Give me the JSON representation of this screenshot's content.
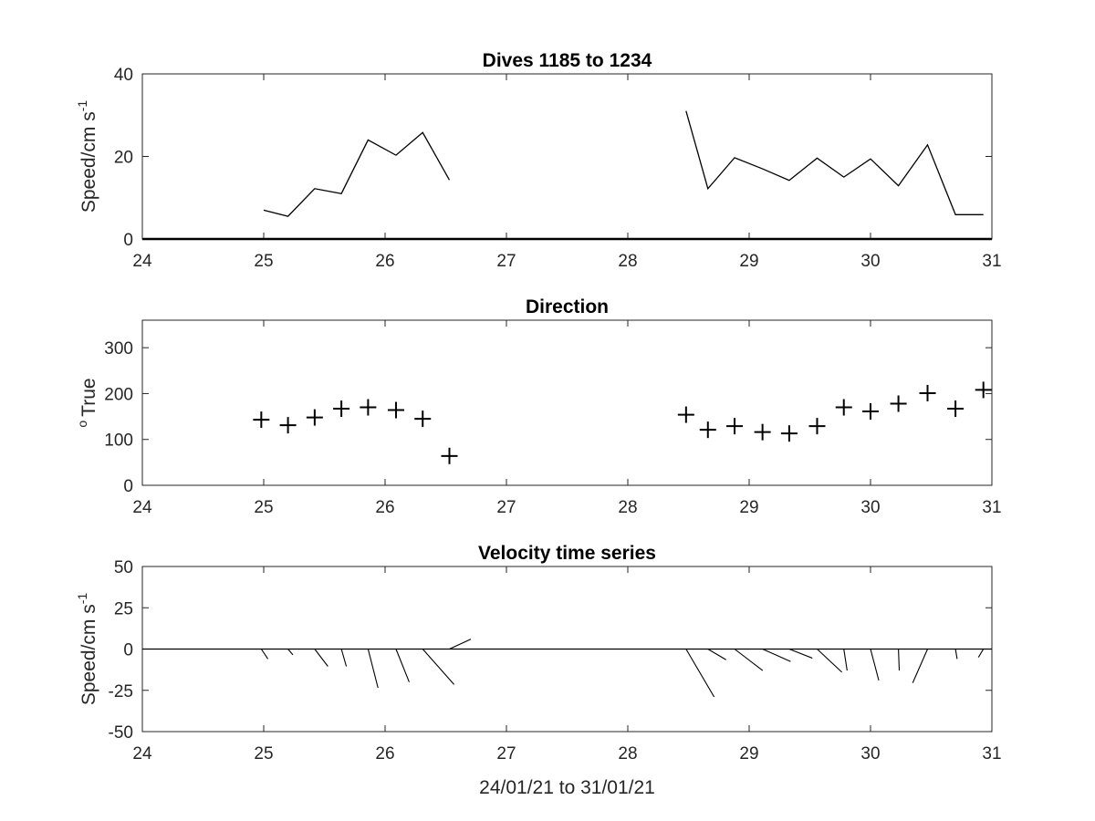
{
  "chart_data": [
    {
      "type": "line",
      "title": "Dives 1185 to 1234",
      "ylabel": "Speed/cm s",
      "ylabel_superscript": "-1",
      "xlim": [
        24,
        31
      ],
      "ylim": [
        0,
        40
      ],
      "xticks": [
        "24",
        "25",
        "26",
        "27",
        "28",
        "29",
        "30",
        "31"
      ],
      "yticks": [
        "0",
        "20",
        "40"
      ],
      "grid": false,
      "series": [
        {
          "x": [
            25.0,
            25.2,
            25.42,
            25.64,
            25.86,
            26.09,
            26.31,
            26.53
          ],
          "y": [
            7.0,
            5.5,
            12.2,
            11.0,
            24.0,
            20.3,
            25.8,
            14.3
          ]
        },
        {
          "x": [
            28.48,
            28.66,
            28.88,
            29.11,
            29.33,
            29.56,
            29.78,
            30.0,
            30.23,
            30.47,
            30.7,
            30.93
          ],
          "y": [
            31.0,
            12.2,
            19.7,
            17.0,
            14.2,
            19.6,
            15.0,
            19.4,
            12.9,
            22.8,
            5.9,
            5.9
          ]
        }
      ]
    },
    {
      "type": "scatter",
      "title": "Direction",
      "ylabel": "True",
      "ylabel_superscript": "o",
      "xlim": [
        24,
        31
      ],
      "ylim": [
        0,
        360
      ],
      "xticks": [
        "24",
        "25",
        "26",
        "27",
        "28",
        "29",
        "30",
        "31"
      ],
      "yticks": [
        "0",
        "100",
        "200",
        "300"
      ],
      "grid": false,
      "marker": "+",
      "series": [
        {
          "x": [
            24.98,
            25.2,
            25.42,
            25.64,
            25.86,
            26.09,
            26.31,
            26.53,
            28.48,
            28.66,
            28.88,
            29.11,
            29.33,
            29.56,
            29.78,
            30.0,
            30.23,
            30.47,
            30.7,
            30.93
          ],
          "y": [
            143,
            131,
            148,
            167,
            170,
            164,
            145,
            64,
            154,
            121,
            129,
            116,
            113,
            129,
            170,
            161,
            178,
            201,
            167,
            208
          ]
        }
      ]
    },
    {
      "type": "line",
      "subtype": "stick-plot",
      "title": "Velocity time series",
      "ylabel": "Speed/cm s",
      "ylabel_superscript": "-1",
      "xlabel": "24/01/21 to 31/01/21",
      "xlim": [
        24,
        31
      ],
      "ylim": [
        -50,
        50
      ],
      "xticks": [
        "24",
        "25",
        "26",
        "27",
        "28",
        "29",
        "30",
        "31"
      ],
      "yticks": [
        "-50",
        "-25",
        "0",
        "25",
        "50"
      ],
      "grid": false,
      "sticks": [
        {
          "t": 24.98,
          "u": 4.0,
          "v": -6.0
        },
        {
          "t": 25.2,
          "u": 3.0,
          "v": -3.5
        },
        {
          "t": 25.42,
          "u": 8.0,
          "v": -10.5
        },
        {
          "t": 25.64,
          "u": 3.0,
          "v": -10.5
        },
        {
          "t": 25.86,
          "u": 6.0,
          "v": -23.5
        },
        {
          "t": 26.09,
          "u": 8.0,
          "v": -20.0
        },
        {
          "t": 26.31,
          "u": 19.0,
          "v": -21.5
        },
        {
          "t": 26.53,
          "u": 13.0,
          "v": 6.0
        },
        {
          "t": 28.48,
          "u": 17.0,
          "v": -29.0
        },
        {
          "t": 28.66,
          "u": 11.0,
          "v": -6.5
        },
        {
          "t": 28.88,
          "u": 17.0,
          "v": -13.0
        },
        {
          "t": 29.11,
          "u": 17.0,
          "v": -7.5
        },
        {
          "t": 29.33,
          "u": 14.0,
          "v": -5.5
        },
        {
          "t": 29.56,
          "u": 15.0,
          "v": -14.0
        },
        {
          "t": 29.78,
          "u": 2.0,
          "v": -13.0
        },
        {
          "t": 30.0,
          "u": 5.0,
          "v": -19.0
        },
        {
          "t": 30.23,
          "u": 0.5,
          "v": -13.0
        },
        {
          "t": 30.47,
          "u": -9.0,
          "v": -20.5
        },
        {
          "t": 30.7,
          "u": 1.0,
          "v": -6.0
        },
        {
          "t": 30.93,
          "u": -3.0,
          "v": -5.0
        }
      ]
    }
  ]
}
